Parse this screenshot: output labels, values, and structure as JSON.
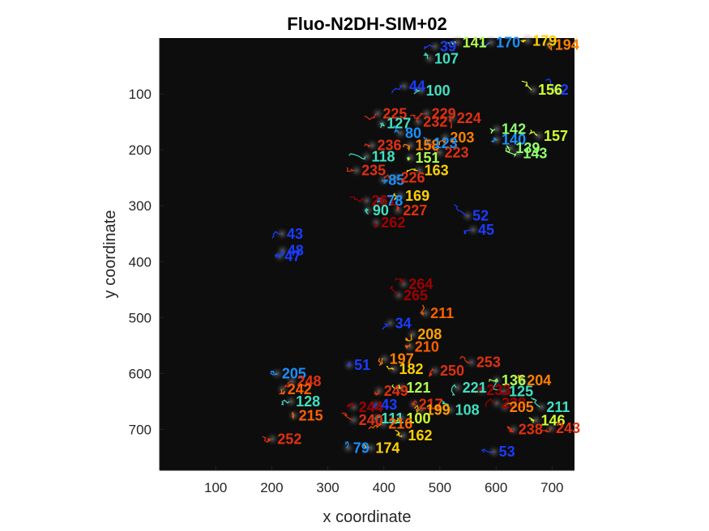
{
  "chart_data": {
    "type": "scatter",
    "title": "Fluo-N2DH-SIM+02",
    "xlabel": "x coordinate",
    "ylabel": "y coordinate",
    "xlim": [
      0,
      740
    ],
    "ylim": [
      0,
      773
    ],
    "y_axis_direction": "reversed",
    "x_ticks": [
      100,
      200,
      300,
      400,
      500,
      600,
      700
    ],
    "y_ticks": [
      100,
      200,
      300,
      400,
      500,
      600,
      700
    ],
    "grid": false,
    "legend": "none",
    "background": "microscopy image (dark, grayscale)",
    "colormap": "jet",
    "tracks": [
      {
        "id": "39",
        "x": 500,
        "y": 15,
        "color": "#1a3cff"
      },
      {
        "id": "107",
        "x": 490,
        "y": 37,
        "color": "#40e0c0"
      },
      {
        "id": "141",
        "x": 540,
        "y": 8,
        "color": "#b0ff50"
      },
      {
        "id": "170",
        "x": 600,
        "y": 8,
        "color": "#1a90ff"
      },
      {
        "id": "179",
        "x": 665,
        "y": 5,
        "color": "#ffd000"
      },
      {
        "id": "194",
        "x": 705,
        "y": 12,
        "color": "#ff8000"
      },
      {
        "id": "44",
        "x": 445,
        "y": 86,
        "color": "#1a3cff"
      },
      {
        "id": "100",
        "x": 475,
        "y": 94,
        "color": "#40e0c0"
      },
      {
        "id": "156",
        "x": 675,
        "y": 93,
        "color": "#d0ff30"
      },
      {
        "id": "2",
        "x": 715,
        "y": 93,
        "color": "#1a3cff"
      },
      {
        "id": "225",
        "x": 398,
        "y": 135,
        "color": "#e03010"
      },
      {
        "id": "229",
        "x": 485,
        "y": 135,
        "color": "#e03010"
      },
      {
        "id": "224",
        "x": 530,
        "y": 143,
        "color": "#e03010"
      },
      {
        "id": "127",
        "x": 405,
        "y": 153,
        "color": "#40e0c0"
      },
      {
        "id": "232",
        "x": 470,
        "y": 150,
        "color": "#e03010"
      },
      {
        "id": "142",
        "x": 610,
        "y": 163,
        "color": "#90ff70"
      },
      {
        "id": "157",
        "x": 685,
        "y": 175,
        "color": "#d0ff30"
      },
      {
        "id": "80",
        "x": 438,
        "y": 170,
        "color": "#1a90ff"
      },
      {
        "id": "203",
        "x": 518,
        "y": 178,
        "color": "#ff8000"
      },
      {
        "id": "140",
        "x": 610,
        "y": 182,
        "color": "#1a90ff"
      },
      {
        "id": "236",
        "x": 388,
        "y": 192,
        "color": "#e03010"
      },
      {
        "id": "158",
        "x": 456,
        "y": 192,
        "color": "#ff8000"
      },
      {
        "id": "123",
        "x": 488,
        "y": 188,
        "color": "#1a90ff"
      },
      {
        "id": "223",
        "x": 508,
        "y": 205,
        "color": "#e03010"
      },
      {
        "id": "139",
        "x": 635,
        "y": 197,
        "color": "#90ff70"
      },
      {
        "id": "143",
        "x": 648,
        "y": 206,
        "color": "#90ff70"
      },
      {
        "id": "118",
        "x": 378,
        "y": 212,
        "color": "#40e0c0"
      },
      {
        "id": "151",
        "x": 456,
        "y": 214,
        "color": "#b0ff50"
      },
      {
        "id": "235",
        "x": 360,
        "y": 237,
        "color": "#e03010"
      },
      {
        "id": "163",
        "x": 472,
        "y": 237,
        "color": "#ffd000"
      },
      {
        "id": "85",
        "x": 408,
        "y": 254,
        "color": "#1a90ff"
      },
      {
        "id": "226",
        "x": 430,
        "y": 250,
        "color": "#e03010"
      },
      {
        "id": "169",
        "x": 438,
        "y": 282,
        "color": "#ffd000"
      },
      {
        "id": "261",
        "x": 378,
        "y": 291,
        "color": "#a00000"
      },
      {
        "id": "78",
        "x": 405,
        "y": 291,
        "color": "#1a90ff"
      },
      {
        "id": "90",
        "x": 380,
        "y": 308,
        "color": "#40e0c0"
      },
      {
        "id": "227",
        "x": 434,
        "y": 308,
        "color": "#e03010"
      },
      {
        "id": "262",
        "x": 395,
        "y": 330,
        "color": "#a00000"
      },
      {
        "id": "52",
        "x": 558,
        "y": 318,
        "color": "#1a3cff"
      },
      {
        "id": "45",
        "x": 568,
        "y": 343,
        "color": "#1a3cff"
      },
      {
        "id": "43",
        "x": 227,
        "y": 350,
        "color": "#1a3cff"
      },
      {
        "id": "48",
        "x": 228,
        "y": 380,
        "color": "#1a3cff"
      },
      {
        "id": "47",
        "x": 223,
        "y": 390,
        "color": "#1a3cff"
      },
      {
        "id": "264",
        "x": 444,
        "y": 440,
        "color": "#a00000"
      },
      {
        "id": "265",
        "x": 435,
        "y": 460,
        "color": "#a00000"
      },
      {
        "id": "211",
        "x": 483,
        "y": 492,
        "color": "#ff6000"
      },
      {
        "id": "34",
        "x": 420,
        "y": 510,
        "color": "#1a3cff"
      },
      {
        "id": "208",
        "x": 460,
        "y": 530,
        "color": "#ffa000"
      },
      {
        "id": "210",
        "x": 455,
        "y": 552,
        "color": "#ff6000"
      },
      {
        "id": "51",
        "x": 347,
        "y": 585,
        "color": "#1a3cff"
      },
      {
        "id": "197",
        "x": 410,
        "y": 574,
        "color": "#ff8000"
      },
      {
        "id": "182",
        "x": 427,
        "y": 592,
        "color": "#ffd000"
      },
      {
        "id": "253",
        "x": 565,
        "y": 580,
        "color": "#e03010"
      },
      {
        "id": "250",
        "x": 500,
        "y": 595,
        "color": "#e03010"
      },
      {
        "id": "136",
        "x": 610,
        "y": 612,
        "color": "#b0ff50"
      },
      {
        "id": "204",
        "x": 655,
        "y": 612,
        "color": "#ff8000"
      },
      {
        "id": "205",
        "x": 218,
        "y": 600,
        "color": "#1a90ff"
      },
      {
        "id": "248",
        "x": 245,
        "y": 614,
        "color": "#e03010"
      },
      {
        "id": "221",
        "x": 540,
        "y": 625,
        "color": "#40e0c0"
      },
      {
        "id": "233",
        "x": 583,
        "y": 630,
        "color": "#a00000"
      },
      {
        "id": "125",
        "x": 623,
        "y": 632,
        "color": "#40e0c0"
      },
      {
        "id": "242",
        "x": 228,
        "y": 628,
        "color": "#ff6000"
      },
      {
        "id": "128",
        "x": 243,
        "y": 650,
        "color": "#40e0c0"
      },
      {
        "id": "249",
        "x": 400,
        "y": 631,
        "color": "#e03010"
      },
      {
        "id": "121",
        "x": 440,
        "y": 625,
        "color": "#b0ff50"
      },
      {
        "id": "244",
        "x": 355,
        "y": 660,
        "color": "#a00000"
      },
      {
        "id": "43",
        "x": 395,
        "y": 656,
        "color": "#1a3cff"
      },
      {
        "id": "217",
        "x": 462,
        "y": 655,
        "color": "#e03010"
      },
      {
        "id": "199",
        "x": 475,
        "y": 665,
        "color": "#ffa000"
      },
      {
        "id": "108",
        "x": 527,
        "y": 665,
        "color": "#40e0c0"
      },
      {
        "id": "238",
        "x": 610,
        "y": 653,
        "color": "#a00000"
      },
      {
        "id": "205",
        "x": 624,
        "y": 660,
        "color": "#ff8000"
      },
      {
        "id": "211",
        "x": 690,
        "y": 660,
        "color": "#40e0c0"
      },
      {
        "id": "215",
        "x": 248,
        "y": 675,
        "color": "#ff6000"
      },
      {
        "id": "111",
        "x": 395,
        "y": 680,
        "color": "#40e0c0"
      },
      {
        "id": "100",
        "x": 440,
        "y": 680,
        "color": "#d0ff30"
      },
      {
        "id": "146",
        "x": 680,
        "y": 684,
        "color": "#d0ff30"
      },
      {
        "id": "243",
        "x": 707,
        "y": 698,
        "color": "#e03010"
      },
      {
        "id": "216",
        "x": 408,
        "y": 690,
        "color": "#ff6000"
      },
      {
        "id": "240",
        "x": 355,
        "y": 683,
        "color": "#e03010"
      },
      {
        "id": "162",
        "x": 443,
        "y": 711,
        "color": "#ffd000"
      },
      {
        "id": "238",
        "x": 640,
        "y": 700,
        "color": "#e03010"
      },
      {
        "id": "252",
        "x": 210,
        "y": 717,
        "color": "#e03010"
      },
      {
        "id": "79",
        "x": 345,
        "y": 733,
        "color": "#1a90ff"
      },
      {
        "id": "174",
        "x": 385,
        "y": 733,
        "color": "#ffd000"
      },
      {
        "id": "53",
        "x": 605,
        "y": 740,
        "color": "#1a3cff"
      }
    ]
  }
}
